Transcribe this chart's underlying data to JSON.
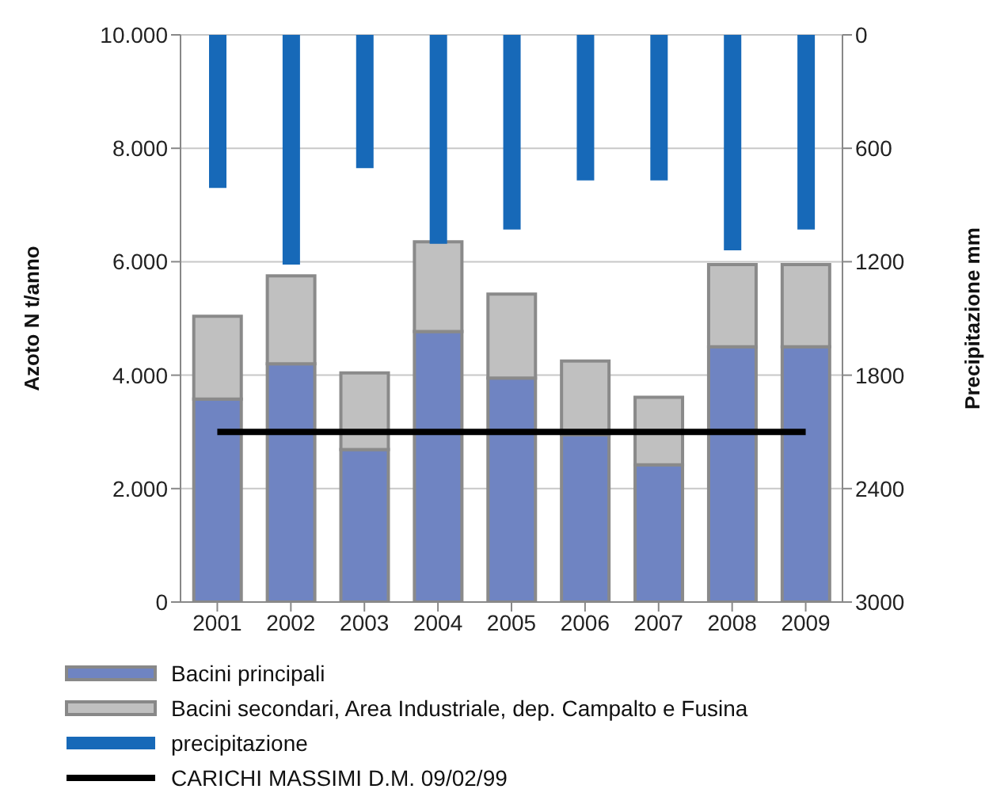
{
  "chart_data": {
    "type": "bar",
    "stacked": true,
    "categories": [
      "2001",
      "2002",
      "2003",
      "2004",
      "2005",
      "2006",
      "2007",
      "2008",
      "2009"
    ],
    "ylabel": "Azoto N t/anno",
    "y2label": "Precipitazione mm",
    "ylim": [
      0,
      10000
    ],
    "yticks": [
      0,
      {
        "value": 2000,
        "label": "2.000"
      },
      {
        "value": 4000,
        "label": "4.000"
      },
      {
        "value": 6000,
        "label": "6.000"
      },
      {
        "value": 8000,
        "label": "8.000"
      },
      {
        "value": 10000,
        "label": "10.000"
      }
    ],
    "y2lim": [
      3000,
      0
    ],
    "y2ticks": [
      0,
      600,
      1200,
      1800,
      2400,
      3000
    ],
    "grid": "y",
    "legend": "bottom",
    "marker": "none",
    "series": [
      {
        "name": "Bacini principali",
        "color": "#6f84c2",
        "values": [
          3580,
          4200,
          2690,
          4770,
          3950,
          2950,
          2420,
          4500,
          4500
        ]
      },
      {
        "name": "Bacini secondari, Area Industriale, dep. Campalto e Fusina",
        "color": "#c0c0c0",
        "values": [
          1460,
          1550,
          1350,
          1580,
          1480,
          1300,
          1190,
          1450,
          1450
        ]
      },
      {
        "name": "precipitazione",
        "color": "#1769b8",
        "axis": "y2",
        "values": [
          810,
          1215,
          705,
          1105,
          1030,
          770,
          770,
          1140,
          1030
        ]
      },
      {
        "name": "CARICHI MASSIMI D.M. 09/02/99",
        "type": "line",
        "color": "#000000",
        "line_style": "solid",
        "values": [
          3000,
          3000,
          3000,
          3000,
          3000,
          3000,
          3000,
          3000,
          3000
        ]
      }
    ]
  }
}
